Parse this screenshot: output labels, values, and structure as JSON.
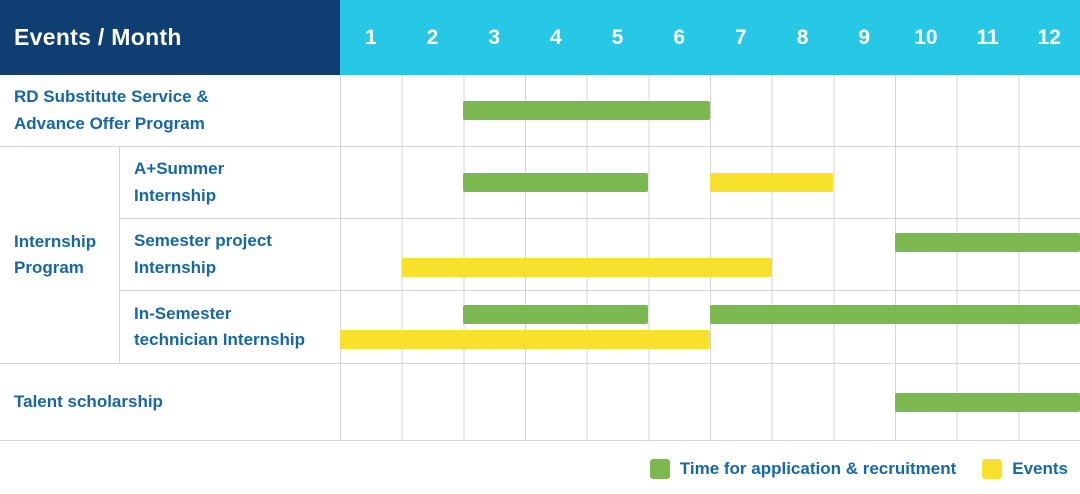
{
  "header": {
    "title": "Events / Month",
    "months": [
      "1",
      "2",
      "3",
      "4",
      "5",
      "6",
      "7",
      "8",
      "9",
      "10",
      "11",
      "12"
    ]
  },
  "colors": {
    "navy": "#0e3e72",
    "cyan": "#27c7e6",
    "green": "#7bb850",
    "yellow": "#f8e12b",
    "label": "#1667a9",
    "grid": "#d4d4d4"
  },
  "chart_data": {
    "type": "gantt",
    "x_axis": {
      "label": "Month",
      "ticks": [
        "1",
        "2",
        "3",
        "4",
        "5",
        "6",
        "7",
        "8",
        "9",
        "10",
        "11",
        "12"
      ],
      "range": [
        1,
        12
      ]
    },
    "group_label": "Internship Program",
    "rows": [
      {
        "group": "",
        "label": "RD Substitute Service &\nAdvance Offer Program",
        "bars": [
          {
            "series": "Time for application & recruitment",
            "color": "green",
            "start_month": 3,
            "end_month": 6,
            "lane": "center"
          }
        ]
      },
      {
        "group": "Internship Program",
        "label": "A+Summer\nInternship",
        "bars": [
          {
            "series": "Time for application & recruitment",
            "color": "green",
            "start_month": 3,
            "end_month": 5,
            "lane": "center"
          },
          {
            "series": "Events",
            "color": "yellow",
            "start_month": 7,
            "end_month": 8,
            "lane": "center"
          }
        ]
      },
      {
        "group": "Internship Program",
        "label": "Semester project\nInternship",
        "bars": [
          {
            "series": "Time for application & recruitment",
            "color": "green",
            "start_month": 10,
            "end_month": 12,
            "lane": "upper"
          },
          {
            "series": "Events",
            "color": "yellow",
            "start_month": 2,
            "end_month": 7,
            "lane": "lower"
          }
        ]
      },
      {
        "group": "Internship Program",
        "label": "In-Semester\ntechnician Internship",
        "bars": [
          {
            "series": "Time for application & recruitment",
            "color": "green",
            "start_month": 3,
            "end_month": 5,
            "lane": "upper"
          },
          {
            "series": "Time for application & recruitment",
            "color": "green",
            "start_month": 7,
            "end_month": 12,
            "lane": "upper"
          },
          {
            "series": "Events",
            "color": "yellow",
            "start_month": 1,
            "end_month": 6,
            "lane": "lower"
          }
        ]
      },
      {
        "group": "",
        "label": "Talent scholarship",
        "bars": [
          {
            "series": "Time for application & recruitment",
            "color": "green",
            "start_month": 10,
            "end_month": 12,
            "lane": "center"
          }
        ]
      }
    ],
    "legend": [
      {
        "color": "green",
        "label": "Time for application & recruitment"
      },
      {
        "color": "yellow",
        "label": "Events"
      }
    ]
  }
}
